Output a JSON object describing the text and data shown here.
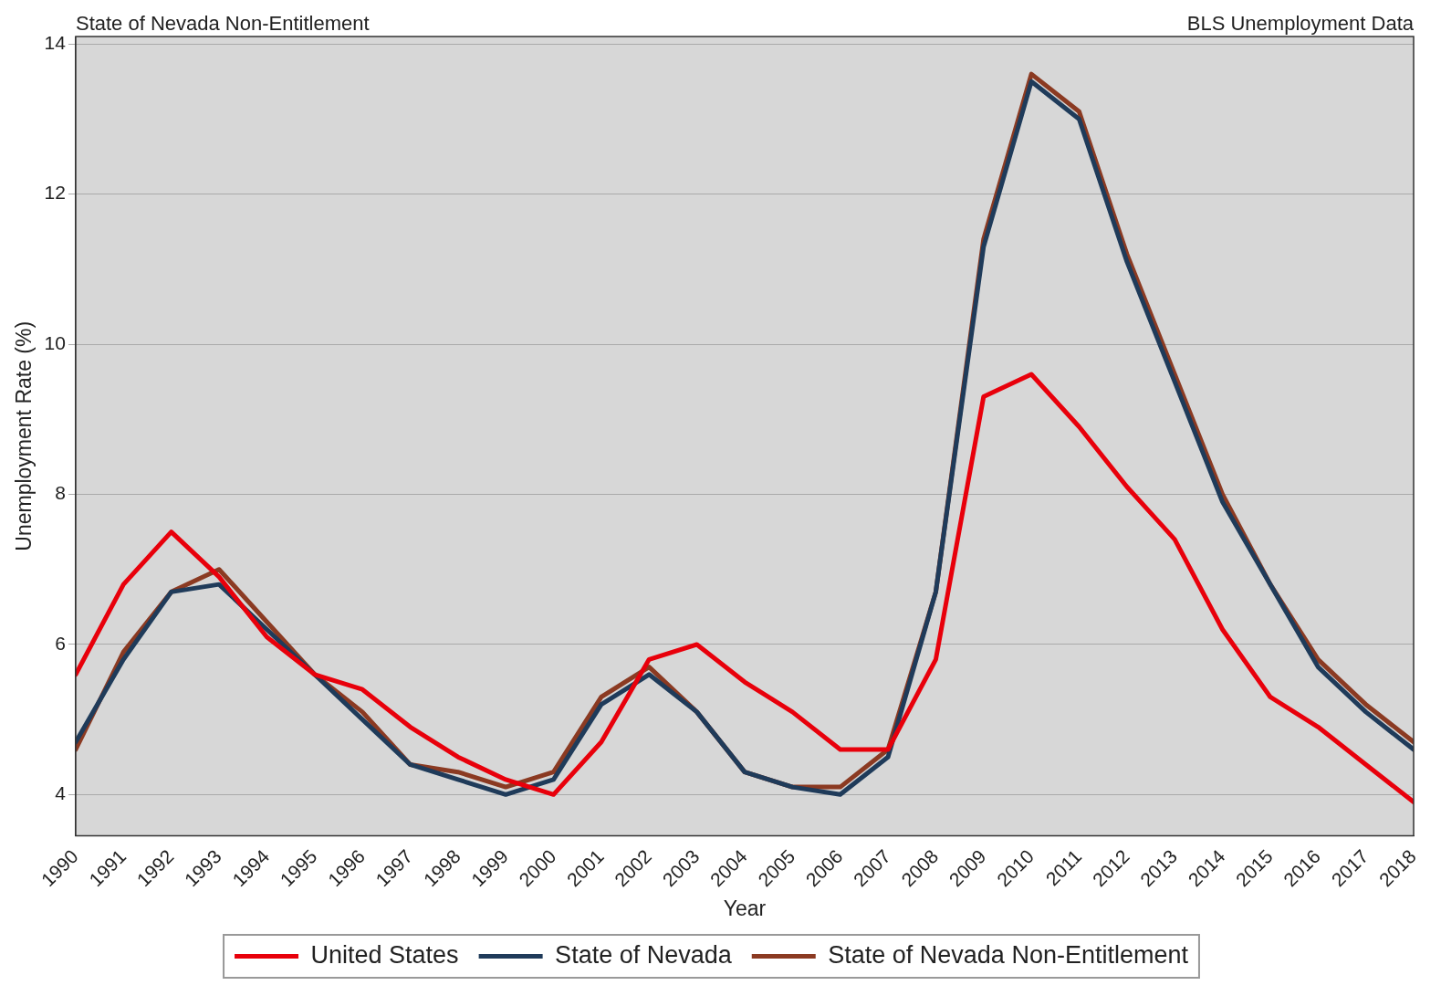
{
  "chart_data": {
    "type": "line",
    "title": "State of Nevada Non-Entitlement",
    "annotations": [
      "BLS Unemployment Data"
    ],
    "xlabel": "Year",
    "ylabel": "Unemployment Rate (%)",
    "x": [
      1990,
      1991,
      1992,
      1993,
      1994,
      1995,
      1996,
      1997,
      1998,
      1999,
      2000,
      2001,
      2002,
      2003,
      2004,
      2005,
      2006,
      2007,
      2008,
      2009,
      2010,
      2011,
      2012,
      2013,
      2014,
      2015,
      2016,
      2017,
      2018
    ],
    "series": [
      {
        "name": "United States",
        "color": "#e8000b",
        "values": [
          5.6,
          6.8,
          7.5,
          6.9,
          6.1,
          5.6,
          5.4,
          4.9,
          4.5,
          4.2,
          4.0,
          4.7,
          5.8,
          6.0,
          5.5,
          5.1,
          4.6,
          4.6,
          5.8,
          9.3,
          9.6,
          8.9,
          8.1,
          7.4,
          6.2,
          5.3,
          4.9,
          4.4,
          3.9
        ]
      },
      {
        "name": "State of Nevada",
        "color": "#1f3b5a",
        "values": [
          4.7,
          5.8,
          6.7,
          6.8,
          6.2,
          5.6,
          5.0,
          4.4,
          4.2,
          4.0,
          4.2,
          5.2,
          5.6,
          5.1,
          4.3,
          4.1,
          4.0,
          4.5,
          6.7,
          11.3,
          13.5,
          13.0,
          11.1,
          9.5,
          7.9,
          6.8,
          5.7,
          5.1,
          4.6
        ]
      },
      {
        "name": "State of Nevada Non-Entitlement",
        "color": "#8b3a22",
        "values": [
          4.6,
          5.9,
          6.7,
          7.0,
          6.3,
          5.6,
          5.1,
          4.4,
          4.3,
          4.1,
          4.3,
          5.3,
          5.7,
          5.1,
          4.3,
          4.1,
          4.1,
          4.6,
          6.7,
          11.4,
          13.6,
          13.1,
          11.2,
          9.6,
          8.0,
          6.8,
          5.8,
          5.2,
          4.7
        ]
      }
    ],
    "xlim": [
      1990,
      2018
    ],
    "xticks": [
      1990,
      1991,
      1992,
      1993,
      1994,
      1995,
      1996,
      1997,
      1998,
      1999,
      2000,
      2001,
      2002,
      2003,
      2004,
      2005,
      2006,
      2007,
      2008,
      2009,
      2010,
      2011,
      2012,
      2013,
      2014,
      2015,
      2016,
      2017,
      2018
    ],
    "ylim": [
      3.45,
      14.1
    ],
    "yticks": [
      4,
      6,
      8,
      10,
      12,
      14
    ],
    "grid": "y",
    "legend": "bottom",
    "line_style": "solid",
    "marker": "none"
  }
}
